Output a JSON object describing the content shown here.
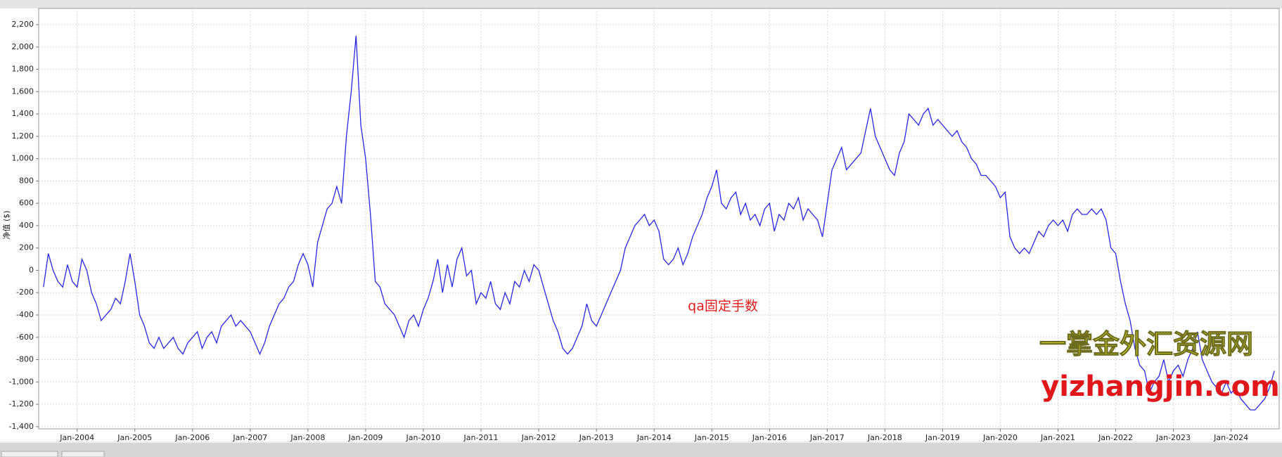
{
  "chart_data": {
    "type": "line",
    "y_label": "净值 ($)",
    "annotation": "qa固定手数",
    "watermark": [
      "一掌金外汇资源网",
      "yizhangjin.com"
    ],
    "color": "#2626e6",
    "grid": true,
    "xlim": [
      "May-2003",
      "Nov-2024"
    ],
    "xticks": [
      "Jan-2004",
      "Jan-2005",
      "Jan-2006",
      "Jan-2007",
      "Jan-2008",
      "Jan-2009",
      "Jan-2010",
      "Jan-2011",
      "Jan-2012",
      "Jan-2013",
      "Jan-2014",
      "Jan-2015",
      "Jan-2016",
      "Jan-2017",
      "Jan-2018",
      "Jan-2019",
      "Jan-2020",
      "Jan-2021",
      "Jan-2022",
      "Jan-2023",
      "Jan-2024"
    ],
    "ylim": [
      -1420,
      2345
    ],
    "yticks": [
      {
        "value": 2200,
        "label": "2,200"
      },
      {
        "value": 2000,
        "label": "2,000"
      },
      {
        "value": 1800,
        "label": "1,800"
      },
      {
        "value": 1600,
        "label": "1,600"
      },
      {
        "value": 1400,
        "label": "1,400"
      },
      {
        "value": 1200,
        "label": "1,200"
      },
      {
        "value": 1000,
        "label": "1,000"
      },
      800,
      600,
      400,
      200,
      0,
      -200,
      -400,
      -600,
      -800,
      {
        "value": -1000,
        "label": "-1,000"
      },
      {
        "value": -1200,
        "label": "-1,200"
      },
      {
        "value": -1400,
        "label": "-1,400"
      }
    ],
    "x": [
      "Jun-2003",
      "Jul-2003",
      "Aug-2003",
      "Sep-2003",
      "Oct-2003",
      "Nov-2003",
      "Dec-2003",
      "Jan-2004",
      "Feb-2004",
      "Mar-2004",
      "Apr-2004",
      "May-2004",
      "Jun-2004",
      "Jul-2004",
      "Aug-2004",
      "Sep-2004",
      "Oct-2004",
      "Nov-2004",
      "Dec-2004",
      "Jan-2005",
      "Feb-2005",
      "Mar-2005",
      "Apr-2005",
      "May-2005",
      "Jun-2005",
      "Jul-2005",
      "Aug-2005",
      "Sep-2005",
      "Oct-2005",
      "Nov-2005",
      "Dec-2005",
      "Jan-2006",
      "Feb-2006",
      "Mar-2006",
      "Apr-2006",
      "May-2006",
      "Jun-2006",
      "Jul-2006",
      "Aug-2006",
      "Sep-2006",
      "Oct-2006",
      "Nov-2006",
      "Dec-2006",
      "Jan-2007",
      "Feb-2007",
      "Mar-2007",
      "Apr-2007",
      "May-2007",
      "Jun-2007",
      "Jul-2007",
      "Aug-2007",
      "Sep-2007",
      "Oct-2007",
      "Nov-2007",
      "Dec-2007",
      "Jan-2008",
      "Feb-2008",
      "Mar-2008",
      "Apr-2008",
      "May-2008",
      "Jun-2008",
      "Jul-2008",
      "Aug-2008",
      "Sep-2008",
      "Oct-2008",
      "Nov-2008",
      "Dec-2008",
      "Jan-2009",
      "Feb-2009",
      "Mar-2009",
      "Apr-2009",
      "May-2009",
      "Jun-2009",
      "Jul-2009",
      "Aug-2009",
      "Sep-2009",
      "Oct-2009",
      "Nov-2009",
      "Dec-2009",
      "Jan-2010",
      "Feb-2010",
      "Mar-2010",
      "Apr-2010",
      "May-2010",
      "Jun-2010",
      "Jul-2010",
      "Aug-2010",
      "Sep-2010",
      "Oct-2010",
      "Nov-2010",
      "Dec-2010",
      "Jan-2011",
      "Feb-2011",
      "Mar-2011",
      "Apr-2011",
      "May-2011",
      "Jun-2011",
      "Jul-2011",
      "Aug-2011",
      "Sep-2011",
      "Oct-2011",
      "Nov-2011",
      "Dec-2011",
      "Jan-2012",
      "Feb-2012",
      "Mar-2012",
      "Apr-2012",
      "May-2012",
      "Jun-2012",
      "Jul-2012",
      "Aug-2012",
      "Sep-2012",
      "Oct-2012",
      "Nov-2012",
      "Dec-2012",
      "Jan-2013",
      "Feb-2013",
      "Mar-2013",
      "Apr-2013",
      "May-2013",
      "Jun-2013",
      "Jul-2013",
      "Aug-2013",
      "Sep-2013",
      "Oct-2013",
      "Nov-2013",
      "Dec-2013",
      "Jan-2014",
      "Feb-2014",
      "Mar-2014",
      "Apr-2014",
      "May-2014",
      "Jun-2014",
      "Jul-2014",
      "Aug-2014",
      "Sep-2014",
      "Oct-2014",
      "Nov-2014",
      "Dec-2014",
      "Jan-2015",
      "Feb-2015",
      "Mar-2015",
      "Apr-2015",
      "May-2015",
      "Jun-2015",
      "Jul-2015",
      "Aug-2015",
      "Sep-2015",
      "Oct-2015",
      "Nov-2015",
      "Dec-2015",
      "Jan-2016",
      "Feb-2016",
      "Mar-2016",
      "Apr-2016",
      "May-2016",
      "Jun-2016",
      "Jul-2016",
      "Aug-2016",
      "Sep-2016",
      "Oct-2016",
      "Nov-2016",
      "Dec-2016",
      "Jan-2017",
      "Feb-2017",
      "Mar-2017",
      "Apr-2017",
      "May-2017",
      "Jun-2017",
      "Jul-2017",
      "Aug-2017",
      "Sep-2017",
      "Oct-2017",
      "Nov-2017",
      "Dec-2017",
      "Jan-2018",
      "Feb-2018",
      "Mar-2018",
      "Apr-2018",
      "May-2018",
      "Jun-2018",
      "Jul-2018",
      "Aug-2018",
      "Sep-2018",
      "Oct-2018",
      "Nov-2018",
      "Dec-2018",
      "Jan-2019",
      "Feb-2019",
      "Mar-2019",
      "Apr-2019",
      "May-2019",
      "Jun-2019",
      "Jul-2019",
      "Aug-2019",
      "Sep-2019",
      "Oct-2019",
      "Nov-2019",
      "Dec-2019",
      "Jan-2020",
      "Feb-2020",
      "Mar-2020",
      "Apr-2020",
      "May-2020",
      "Jun-2020",
      "Jul-2020",
      "Aug-2020",
      "Sep-2020",
      "Oct-2020",
      "Nov-2020",
      "Dec-2020",
      "Jan-2021",
      "Feb-2021",
      "Mar-2021",
      "Apr-2021",
      "May-2021",
      "Jun-2021",
      "Jul-2021",
      "Aug-2021",
      "Sep-2021",
      "Oct-2021",
      "Nov-2021",
      "Dec-2021",
      "Jan-2022",
      "Feb-2022",
      "Mar-2022",
      "Apr-2022",
      "May-2022",
      "Jun-2022",
      "Jul-2022",
      "Aug-2022",
      "Sep-2022",
      "Oct-2022",
      "Nov-2022",
      "Dec-2022",
      "Jan-2023",
      "Feb-2023",
      "Mar-2023",
      "Apr-2023",
      "May-2023",
      "Jun-2023",
      "Jul-2023",
      "Aug-2023",
      "Sep-2023",
      "Oct-2023",
      "Nov-2023",
      "Dec-2023",
      "Jan-2024",
      "Feb-2024",
      "Mar-2024",
      "Apr-2024",
      "May-2024",
      "Jun-2024",
      "Jul-2024",
      "Aug-2024",
      "Sep-2024",
      "Oct-2024"
    ],
    "values": [
      -150,
      150,
      0,
      -100,
      -150,
      50,
      -100,
      -150,
      100,
      0,
      -200,
      -300,
      -450,
      -400,
      -350,
      -250,
      -300,
      -100,
      150,
      -100,
      -400,
      -500,
      -650,
      -700,
      -600,
      -700,
      -650,
      -600,
      -700,
      -750,
      -650,
      -600,
      -550,
      -700,
      -600,
      -550,
      -650,
      -500,
      -450,
      -400,
      -500,
      -450,
      -500,
      -550,
      -650,
      -750,
      -650,
      -500,
      -400,
      -300,
      -250,
      -150,
      -100,
      50,
      150,
      50,
      -150,
      250,
      400,
      550,
      600,
      750,
      600,
      1200,
      1600,
      2100,
      1300,
      1000,
      500,
      -100,
      -150,
      -300,
      -350,
      -400,
      -500,
      -600,
      -450,
      -400,
      -500,
      -350,
      -250,
      -100,
      100,
      -200,
      50,
      -150,
      100,
      200,
      -50,
      0,
      -300,
      -200,
      -250,
      -100,
      -300,
      -350,
      -200,
      -300,
      -100,
      -150,
      0,
      -100,
      50,
      0,
      -150,
      -300,
      -450,
      -550,
      -700,
      -750,
      -700,
      -600,
      -500,
      -300,
      -450,
      -500,
      -400,
      -300,
      -200,
      -100,
      0,
      200,
      300,
      400,
      450,
      500,
      400,
      450,
      350,
      100,
      50,
      100,
      200,
      50,
      150,
      300,
      400,
      500,
      650,
      750,
      900,
      600,
      550,
      650,
      700,
      500,
      600,
      450,
      500,
      400,
      550,
      600,
      350,
      500,
      450,
      600,
      550,
      650,
      450,
      550,
      500,
      450,
      300,
      600,
      900,
      1000,
      1100,
      900,
      950,
      1000,
      1050,
      1250,
      1450,
      1200,
      1100,
      1000,
      900,
      850,
      1050,
      1150,
      1400,
      1350,
      1300,
      1400,
      1450,
      1300,
      1350,
      1300,
      1250,
      1200,
      1250,
      1150,
      1100,
      1000,
      950,
      850,
      850,
      800,
      750,
      650,
      700,
      300,
      200,
      150,
      200,
      150,
      250,
      350,
      300,
      400,
      450,
      400,
      450,
      350,
      500,
      550,
      500,
      500,
      550,
      500,
      550,
      450,
      200,
      150,
      -100,
      -300,
      -450,
      -700,
      -850,
      -900,
      -1100,
      -1000,
      -950,
      -800,
      -1000,
      -900,
      -850,
      -950,
      -800,
      -700,
      -550,
      -800,
      -900,
      -1000,
      -1050,
      -1100,
      -1000,
      -1100,
      -1050,
      -1150,
      -1200,
      -1250,
      -1250,
      -1200,
      -1150,
      -1050,
      -900
    ]
  }
}
